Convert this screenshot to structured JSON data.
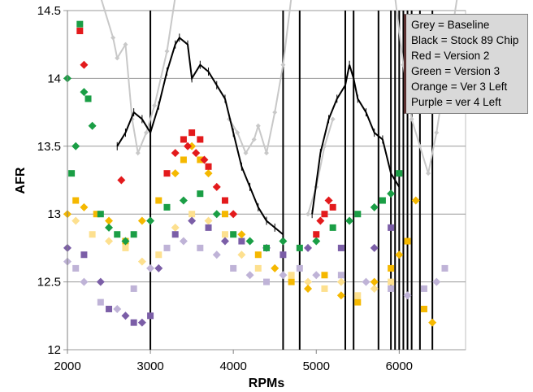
{
  "chart_data": {
    "type": "scatter",
    "title": "",
    "xlabel": "RPMs",
    "ylabel": "AFR",
    "xlim": [
      2000,
      6800
    ],
    "ylim": [
      12,
      14.5
    ],
    "xticks": [
      2000,
      3000,
      4000,
      5000,
      6000
    ],
    "yticks": [
      12,
      12.5,
      13,
      13.5,
      14,
      14.5
    ],
    "ytick_labels": [
      "12",
      "12.5",
      "13",
      "13.5",
      "14",
      "14.5"
    ],
    "grid": "horizontal",
    "legend_position": "top-right",
    "legend": [
      "Grey = Baseline",
      "Black = Stock 89 Chip",
      "Red = Version 2",
      "Green = Version 3",
      "Orange = Ver 3 Left",
      "Purple = ver 4 Left"
    ],
    "vertical_markers_rpm": [
      3000,
      4600,
      4800,
      5350,
      5450,
      5750,
      5900,
      5950,
      6000,
      6050,
      6100,
      6150,
      6250,
      6400
    ],
    "series": [
      {
        "color": "#c8c8c8",
        "style": "line",
        "x": [
          2400,
          2550,
          2600,
          2700,
          2780,
          2850,
          2950,
          3050,
          3200,
          3300
        ],
        "y": [
          14.6,
          14.3,
          14.15,
          14.25,
          13.7,
          13.45,
          13.6,
          13.8,
          14.2,
          14.6
        ]
      },
      {
        "color": "#c8c8c8",
        "style": "line",
        "x": [
          3950,
          4050,
          4150,
          4250,
          4300,
          4400,
          4500,
          4600,
          4700
        ],
        "y": [
          13.7,
          13.6,
          13.45,
          13.55,
          13.65,
          13.45,
          13.75,
          14.1,
          14.6
        ]
      },
      {
        "color": "#c8c8c8",
        "style": "line",
        "x": [
          5950,
          6050,
          6150,
          6250,
          6350,
          6450,
          6550,
          6700
        ],
        "y": [
          14.6,
          14.1,
          13.7,
          13.5,
          13.3,
          13.6,
          14.0,
          14.6
        ]
      },
      {
        "color": "#c8c8c8",
        "style": "line",
        "x": [
          4900,
          5000,
          5100,
          5200
        ],
        "y": [
          13.0,
          13.2,
          13.5,
          13.7
        ]
      },
      {
        "color": "#000000",
        "style": "line",
        "x": [
          2600,
          2700,
          2800,
          2900,
          3000,
          3100,
          3200,
          3300,
          3350,
          3450,
          3500,
          3600,
          3700,
          3800,
          3900,
          4000,
          4100,
          4200,
          4300,
          4400,
          4500,
          4600
        ],
        "y": [
          13.5,
          13.6,
          13.75,
          13.7,
          13.6,
          13.8,
          14.05,
          14.25,
          14.3,
          14.25,
          14.0,
          14.1,
          14.05,
          13.95,
          13.85,
          13.6,
          13.35,
          13.2,
          13.05,
          12.95,
          12.9,
          12.85
        ]
      },
      {
        "color": "#000000",
        "style": "line",
        "x": [
          4950,
          5050,
          5150,
          5250,
          5350,
          5400,
          5450,
          5500,
          5600,
          5700,
          5800,
          5900,
          6000
        ],
        "y": [
          13.0,
          13.45,
          13.7,
          13.85,
          13.95,
          14.1,
          14.0,
          13.85,
          13.75,
          13.6,
          13.55,
          13.3,
          13.2
        ]
      },
      {
        "color": "#e31a1c",
        "style": "marker",
        "x": [
          2200,
          2150,
          2650,
          3200,
          3300,
          3400,
          3450,
          3500,
          3550,
          3600,
          3650,
          3700,
          3800,
          3900,
          4000,
          5000,
          5050,
          5100,
          5150,
          5200
        ],
        "y": [
          14.1,
          14.35,
          13.25,
          13.3,
          13.45,
          13.55,
          13.5,
          13.6,
          13.45,
          13.55,
          13.4,
          13.35,
          13.2,
          13.1,
          13.0,
          12.85,
          12.95,
          13.0,
          13.1,
          13.05
        ]
      },
      {
        "color": "#1a9e45",
        "style": "marker",
        "x": [
          2000,
          2050,
          2100,
          2150,
          2200,
          2250,
          2300,
          2400,
          2500,
          2600,
          2700,
          2800,
          3000,
          3200,
          3400,
          3600,
          3800,
          4000,
          4200,
          4400,
          4600,
          4800,
          5000,
          5200,
          5400,
          5500,
          5700,
          5800,
          5900,
          6000
        ],
        "y": [
          14.0,
          13.3,
          13.5,
          14.4,
          13.9,
          13.85,
          13.65,
          13.0,
          12.9,
          12.85,
          12.8,
          12.85,
          12.95,
          13.05,
          13.1,
          13.15,
          13.0,
          12.85,
          12.8,
          12.75,
          12.8,
          12.75,
          12.8,
          12.9,
          12.95,
          13.0,
          13.05,
          13.1,
          13.15,
          13.3
        ]
      },
      {
        "color": "#f5b800",
        "style": "marker",
        "x": [
          2000,
          2100,
          2200,
          2350,
          2500,
          2700,
          2900,
          3100,
          3300,
          3400,
          3500,
          3600,
          3700,
          3900,
          4100,
          4300,
          4500,
          4700,
          4900,
          5100,
          5300,
          5500,
          5700,
          5900,
          6000,
          6100,
          6200,
          6300,
          6400
        ],
        "y": [
          13.0,
          13.1,
          13.05,
          13.0,
          12.95,
          12.8,
          12.95,
          13.1,
          13.3,
          13.4,
          13.5,
          13.4,
          13.3,
          13.0,
          12.85,
          12.7,
          12.6,
          12.5,
          12.45,
          12.55,
          12.4,
          12.35,
          12.5,
          12.6,
          12.7,
          12.8,
          13.1,
          12.3,
          12.2
        ]
      },
      {
        "color": "#7b5ea7",
        "style": "marker",
        "x": [
          2000,
          2200,
          2400,
          2500,
          2700,
          2800,
          2900,
          3000,
          3100,
          3300,
          3500,
          3700,
          3900,
          4100,
          4400,
          4600,
          4900,
          5300,
          5700,
          5900
        ],
        "y": [
          12.75,
          12.7,
          12.5,
          12.3,
          12.25,
          12.2,
          12.2,
          12.25,
          12.6,
          12.85,
          12.95,
          12.9,
          12.8,
          12.8,
          12.75,
          12.7,
          12.75,
          12.75,
          12.75,
          12.9
        ]
      },
      {
        "color": "#bfb3d7",
        "style": "marker",
        "x": [
          2000,
          2100,
          2200,
          2400,
          2600,
          2800,
          3000,
          3200,
          3400,
          3600,
          3800,
          4000,
          4200,
          4400,
          4600,
          4800,
          5000,
          5300,
          5600,
          5900,
          6100,
          6300,
          6450,
          6550
        ],
        "y": [
          12.65,
          12.6,
          12.5,
          12.35,
          12.3,
          12.45,
          12.6,
          12.75,
          12.8,
          12.75,
          12.7,
          12.6,
          12.55,
          12.5,
          12.55,
          12.6,
          12.55,
          12.55,
          12.5,
          12.45,
          12.4,
          12.45,
          12.5,
          12.6
        ]
      },
      {
        "color": "#fde08f",
        "style": "marker",
        "x": [
          2100,
          2300,
          2500,
          2700,
          2900,
          3100,
          3300,
          3500,
          3700,
          3900,
          4100,
          4300,
          4500,
          4700,
          4900,
          5100,
          5300,
          5500,
          5700,
          5900
        ],
        "y": [
          12.95,
          12.85,
          12.8,
          12.75,
          12.65,
          12.7,
          12.9,
          13.0,
          12.95,
          12.85,
          12.7,
          12.6,
          12.6,
          12.55,
          12.5,
          12.45,
          12.5,
          12.4,
          12.45,
          12.5
        ]
      }
    ]
  }
}
